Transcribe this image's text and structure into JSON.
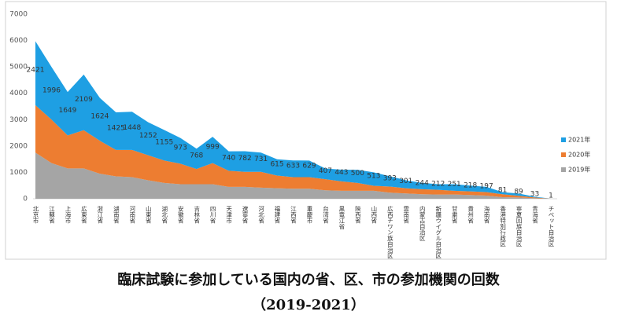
{
  "chart_data": {
    "type": "stacked_area",
    "title": "臨床試験に参加している国内の省、区、市の参加機関の回数",
    "subtitle": "（2019-2021）",
    "categories": [
      "北京市",
      "江蘇省",
      "上海市",
      "広東省",
      "浙江省",
      "湖南省",
      "河南省",
      "山東省",
      "湖北省",
      "安徽省",
      "吉林省",
      "四川省",
      "天津市",
      "遼寧省",
      "河北省",
      "福建省",
      "江西省",
      "重慶市",
      "台湾省",
      "黒竜江省",
      "陝西省",
      "山西省",
      "広西チワン族自治区",
      "雲南省",
      "内蒙古自治区",
      "新疆ウイグル自治区",
      "甘粛省",
      "貴州省",
      "海南省",
      "香港特別行政区",
      "寧夏回族自治区",
      "青海省",
      "チベット自治区"
    ],
    "series": [
      {
        "name": "2019年",
        "color": "#a5a5a5",
        "values": [
          1750,
          1350,
          1150,
          1150,
          950,
          850,
          820,
          700,
          600,
          550,
          550,
          550,
          450,
          450,
          420,
          400,
          380,
          380,
          320,
          300,
          300,
          300,
          230,
          200,
          170,
          160,
          160,
          140,
          120,
          60,
          50,
          20,
          2
        ]
      },
      {
        "name": "2020年",
        "color": "#ed7d31",
        "values": [
          1800,
          1650,
          1250,
          1450,
          1250,
          1000,
          1030,
          950,
          850,
          780,
          580,
          800,
          610,
          570,
          600,
          480,
          440,
          440,
          420,
          360,
          300,
          190,
          230,
          200,
          190,
          180,
          140,
          140,
          133,
          110,
          60,
          27,
          2
        ]
      },
      {
        "name": "2021年",
        "color": "#1e9fe3",
        "values": [
          2421,
          1996,
          1649,
          2109,
          1624,
          1425,
          1448,
          1252,
          1155,
          973,
          768,
          999,
          740,
          782,
          731,
          615,
          633,
          629,
          407,
          443,
          500,
          513,
          393,
          301,
          244,
          212,
          251,
          218,
          197,
          81,
          89,
          33,
          1
        ]
      }
    ],
    "ylim": [
      0,
      7000
    ],
    "yticks": [
      0,
      1000,
      2000,
      3000,
      4000,
      5000,
      6000,
      7000
    ],
    "data_labels_series": 2,
    "legend": "right"
  }
}
